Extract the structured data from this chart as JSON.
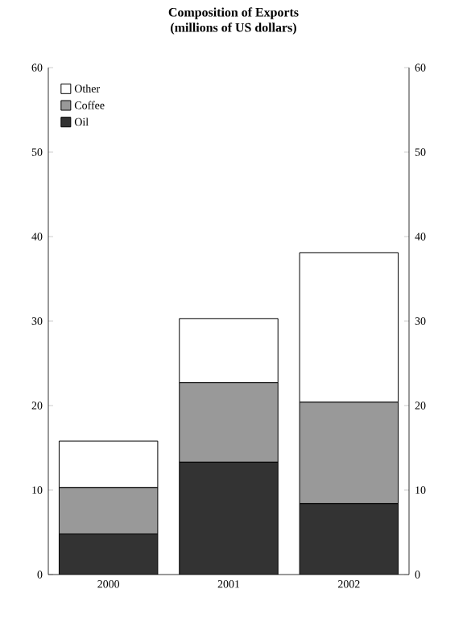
{
  "chart_data": {
    "type": "bar",
    "title": "Composition of Exports",
    "subtitle": "(millions of US dollars)",
    "categories": [
      "2000",
      "2001",
      "2002"
    ],
    "stacked": true,
    "series": [
      {
        "name": "Oil",
        "color": "#333333",
        "values": [
          4.8,
          13.3,
          8.4
        ]
      },
      {
        "name": "Coffee",
        "color": "#999999",
        "values": [
          5.5,
          9.4,
          12.0
        ]
      },
      {
        "name": "Other",
        "color": "#ffffff",
        "values": [
          5.5,
          7.6,
          17.7
        ]
      }
    ],
    "ylim": [
      0,
      60
    ],
    "yticks": [
      0,
      10,
      20,
      30,
      40,
      50,
      60
    ],
    "y2lim": [
      0,
      60
    ],
    "y2ticks": [
      0,
      10,
      20,
      30,
      40,
      50,
      60
    ],
    "legend": "top left"
  }
}
